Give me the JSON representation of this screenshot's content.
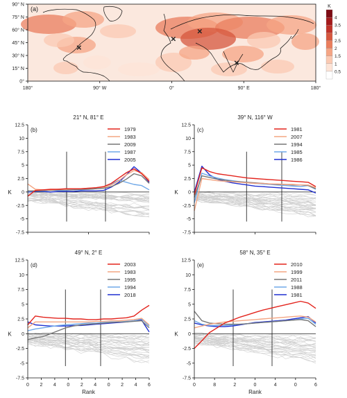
{
  "chart_data": [
    {
      "type": "heatmap",
      "panel": "(a)",
      "title": "",
      "xlabel": "",
      "ylabel": "",
      "x_ticks": [
        "180°",
        "90° W",
        "0°",
        "90° E",
        "180°"
      ],
      "y_ticks": [
        "0°",
        "15° N",
        "30° N",
        "45° N",
        "60° N",
        "75° N",
        "90° N"
      ],
      "xlim": [
        -180,
        180
      ],
      "ylim": [
        0,
        90
      ],
      "colorbar": {
        "unit": "K",
        "ticks": [
          "0.5",
          "1",
          "1.5",
          "2",
          "2.5",
          "3",
          "3.5",
          "4"
        ],
        "colors": [
          "#ffffff",
          "#fde4d7",
          "#fbcab3",
          "#f5a585",
          "#ea7e5d",
          "#d6573e",
          "#c0332a",
          "#a41a1c",
          "#7d0c14"
        ]
      },
      "markers": [
        {
          "lon": 81,
          "lat": 21,
          "symbol": "×"
        },
        {
          "lon": -116,
          "lat": 39,
          "symbol": "×"
        },
        {
          "lon": 2,
          "lat": 49,
          "symbol": "×"
        },
        {
          "lon": 35,
          "lat": 58,
          "symbol": "×"
        }
      ]
    },
    {
      "type": "line",
      "panel": "(b)",
      "title": "21° N, 81° E",
      "xlabel": "",
      "ylabel": "K",
      "ylim": [
        -7.5,
        12.5
      ],
      "y_ticks": [
        "-7.5",
        "-5",
        "-2.5",
        "0",
        "2.5",
        "5",
        "7.5",
        "10",
        "12.5"
      ],
      "x_ticks": [],
      "series": [
        {
          "name": "1979",
          "color": "#e3231c",
          "values": [
            -0.8,
            0.3,
            0.4,
            0.5,
            0.5,
            0.6,
            0.6,
            0.6,
            0.7,
            0.8,
            1.0,
            1.6,
            2.6,
            3.6,
            4.3,
            3.4,
            2.0
          ]
        },
        {
          "name": "1983",
          "color": "#f4a582",
          "values": [
            1.5,
            0.5,
            0.4,
            0.4,
            0.5,
            0.5,
            0.6,
            0.6,
            0.7,
            0.8,
            0.9,
            1.3,
            2.1,
            3.2,
            4.0,
            3.6,
            2.3
          ]
        },
        {
          "name": "2009",
          "color": "#777777",
          "values": [
            0.2,
            0.2,
            0.3,
            0.3,
            0.4,
            0.4,
            0.4,
            0.5,
            0.5,
            0.6,
            0.7,
            1.0,
            1.6,
            2.4,
            3.4,
            3.0,
            1.6
          ]
        },
        {
          "name": "1987",
          "color": "#6fa8e8",
          "values": [
            0.1,
            0.2,
            0.2,
            0.3,
            0.3,
            0.3,
            0.4,
            0.4,
            0.5,
            0.6,
            0.9,
            1.5,
            2.2,
            1.8,
            1.4,
            1.2,
            0.4
          ]
        },
        {
          "name": "2005",
          "color": "#1f2fd0",
          "values": [
            0.0,
            0.1,
            0.1,
            0.0,
            0.1,
            0.1,
            0.1,
            0.2,
            0.2,
            0.2,
            0.3,
            0.9,
            1.8,
            3.2,
            4.7,
            3.5,
            1.8
          ]
        }
      ],
      "background_series_count": 30,
      "vertical_lines_fraction": [
        0.32,
        0.64
      ]
    },
    {
      "type": "line",
      "panel": "(c)",
      "title": "39° N, 116° W",
      "xlabel": "",
      "ylabel": "K",
      "ylim": [
        -7.5,
        12.5
      ],
      "y_ticks": [
        "-7.5",
        "-5",
        "-2.5",
        "0",
        "2.5",
        "5",
        "7.5",
        "10",
        "12.5"
      ],
      "x_ticks": [],
      "series": [
        {
          "name": "1981",
          "color": "#e3231c",
          "values": [
            -0.5,
            4.5,
            3.8,
            3.4,
            3.2,
            3.0,
            2.8,
            2.6,
            2.5,
            2.4,
            2.3,
            2.2,
            2.1,
            2.0,
            1.9,
            1.8,
            1.0
          ]
        },
        {
          "name": "2007",
          "color": "#f4a582",
          "values": [
            -3.5,
            2.5,
            2.3,
            2.1,
            2.0,
            1.9,
            1.8,
            1.7,
            1.6,
            1.6,
            1.5,
            1.5,
            1.4,
            1.4,
            1.3,
            1.3,
            0.8
          ]
        },
        {
          "name": "1994",
          "color": "#777777",
          "values": [
            -1.0,
            3.0,
            2.7,
            2.4,
            2.2,
            2.0,
            1.9,
            1.8,
            1.7,
            1.6,
            1.5,
            1.4,
            1.4,
            1.3,
            1.3,
            1.2,
            0.6
          ]
        },
        {
          "name": "1985",
          "color": "#6fa8e8",
          "values": [
            -2.0,
            3.5,
            3.0,
            2.6,
            2.3,
            2.1,
            1.9,
            1.7,
            1.6,
            1.5,
            1.4,
            1.3,
            1.2,
            1.1,
            1.0,
            1.2,
            0.5
          ]
        },
        {
          "name": "1986",
          "color": "#1f2fd0",
          "values": [
            0.0,
            4.8,
            3.2,
            2.4,
            2.0,
            1.7,
            1.5,
            1.3,
            1.1,
            1.0,
            0.9,
            0.8,
            0.7,
            0.6,
            0.5,
            0.4,
            -0.2
          ]
        }
      ],
      "background_series_count": 30,
      "vertical_lines_fraction": [
        0.43,
        0.72
      ]
    },
    {
      "type": "line",
      "panel": "(d)",
      "title": "49° N, 2° E",
      "xlabel": "Rank",
      "ylabel": "K",
      "ylim": [
        -7.5,
        12.5
      ],
      "y_ticks": [
        "-7.5",
        "-5",
        "-2.5",
        "0",
        "2.5",
        "5",
        "7.5",
        "10",
        "12.5"
      ],
      "x_ticks": [
        "0",
        "2",
        "4",
        "0",
        "2",
        "4",
        "0",
        "2",
        "4",
        "6"
      ],
      "series": [
        {
          "name": "2003",
          "color": "#e3231c",
          "values": [
            1.5,
            3.0,
            2.8,
            2.7,
            2.6,
            2.6,
            2.5,
            2.5,
            2.4,
            2.4,
            2.5,
            2.5,
            2.6,
            2.7,
            3.0,
            4.0,
            4.8
          ]
        },
        {
          "name": "1983",
          "color": "#f4a582",
          "values": [
            1.0,
            2.0,
            2.0,
            2.0,
            2.0,
            2.0,
            2.0,
            2.0,
            2.0,
            2.1,
            2.1,
            2.2,
            2.2,
            2.3,
            2.4,
            2.6,
            1.5
          ]
        },
        {
          "name": "1995",
          "color": "#777777",
          "values": [
            -1.0,
            -0.7,
            -0.5,
            0.0,
            0.5,
            1.0,
            1.3,
            1.5,
            1.6,
            1.7,
            1.8,
            1.9,
            2.0,
            2.0,
            2.1,
            2.2,
            1.0
          ]
        },
        {
          "name": "1994",
          "color": "#6fa8e8",
          "values": [
            0.5,
            0.8,
            1.0,
            1.2,
            1.4,
            1.5,
            1.6,
            1.7,
            1.8,
            1.8,
            1.9,
            2.0,
            2.0,
            2.1,
            2.2,
            2.5,
            1.3
          ]
        },
        {
          "name": "2018",
          "color": "#1f2fd0",
          "values": [
            2.0,
            1.5,
            1.4,
            1.3,
            1.3,
            1.3,
            1.4,
            1.4,
            1.5,
            1.6,
            1.7,
            1.8,
            1.9,
            2.0,
            2.2,
            2.3,
            0.3
          ]
        }
      ],
      "background_series_count": 30,
      "vertical_lines_fraction": [
        0.31,
        0.6
      ]
    },
    {
      "type": "line",
      "panel": "(e)",
      "title": "58° N, 35° E",
      "xlabel": "Rank",
      "ylabel": "K",
      "ylim": [
        -7.5,
        12.5
      ],
      "y_ticks": [
        "-7.5",
        "-5",
        "-2.5",
        "0",
        "2.5",
        "5",
        "7.5",
        "10",
        "12.5"
      ],
      "x_ticks": [
        "0",
        "8",
        "2",
        "0",
        "4",
        "0",
        "6"
      ],
      "series": [
        {
          "name": "2010",
          "color": "#e3231c",
          "values": [
            -2.5,
            -1.2,
            0.2,
            1.0,
            1.8,
            2.3,
            2.8,
            3.2,
            3.6,
            4.0,
            4.3,
            4.6,
            4.9,
            5.2,
            5.5,
            5.2,
            4.3
          ]
        },
        {
          "name": "1999",
          "color": "#f4a582",
          "values": [
            1.0,
            1.3,
            1.6,
            1.8,
            2.0,
            2.1,
            2.2,
            2.3,
            2.4,
            2.5,
            2.6,
            2.7,
            2.8,
            2.9,
            3.0,
            2.8,
            2.0
          ]
        },
        {
          "name": "2011",
          "color": "#777777",
          "values": [
            3.8,
            2.2,
            1.8,
            1.7,
            1.6,
            1.6,
            1.6,
            1.7,
            1.8,
            1.9,
            2.0,
            2.1,
            2.2,
            2.3,
            2.4,
            2.2,
            1.2
          ]
        },
        {
          "name": "1988",
          "color": "#6fa8e8",
          "values": [
            2.2,
            1.6,
            1.4,
            1.4,
            1.4,
            1.5,
            1.6,
            1.7,
            1.8,
            1.9,
            2.0,
            2.1,
            2.2,
            2.3,
            2.5,
            2.6,
            1.6
          ]
        },
        {
          "name": "1981",
          "color": "#1f2fd0",
          "values": [
            1.8,
            1.5,
            1.3,
            1.2,
            1.2,
            1.3,
            1.5,
            1.7,
            1.9,
            2.0,
            2.1,
            2.2,
            2.3,
            2.5,
            2.7,
            2.9,
            1.8
          ]
        }
      ],
      "background_series_count": 30,
      "vertical_lines_fraction": [
        0.32,
        0.64
      ]
    }
  ]
}
